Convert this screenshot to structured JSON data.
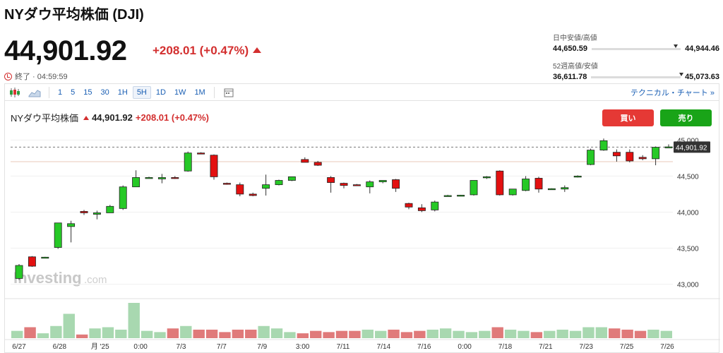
{
  "header": {
    "title": "NYダウ平均株価 (DJI)",
    "price": "44,901.92",
    "change": "+208.01 (+0.47%)",
    "status": "終了 · 04:59:59"
  },
  "ranges": {
    "day_label": "日中安値/高値",
    "day_low": "44,650.59",
    "day_high": "44,944.46",
    "day_pos": 0.92,
    "week52_label": "52週高値/安値",
    "week52_low": "36,611.78",
    "week52_high": "45,073.63",
    "week52_pos": 0.98
  },
  "toolbar": {
    "timeframes": [
      "1",
      "5",
      "15",
      "30",
      "1H",
      "5H",
      "1D",
      "1W",
      "1M"
    ],
    "active": "5H",
    "technical": "テクニカル・チャート »"
  },
  "chart_header": {
    "name": "NYダウ平均株価",
    "price": "44,901.92",
    "change": "+208.01 (+0.47%)",
    "sell_label": "買い",
    "buy_label": "売り"
  },
  "watermark": {
    "main": "Investing",
    "suffix": ".com"
  },
  "colors": {
    "up": "#26c926",
    "down": "#e31010",
    "vol_up": "#a8d8b0",
    "vol_down": "#e07a7a",
    "accent": "#d32f2f",
    "blue": "#1a5fb4"
  },
  "chart_data": {
    "type": "candlestick",
    "title": "",
    "ylim": [
      42800,
      45150
    ],
    "yticks": [
      43000,
      43500,
      44000,
      44500,
      45000
    ],
    "ytick_labels": [
      "43,000",
      "43,500",
      "44,000",
      "44,500",
      "45,000"
    ],
    "last_price": 44901.92,
    "last_label": "44,901.92",
    "ref_line": 44700,
    "xlabels": [
      "6/27",
      "6/28",
      "月 '25",
      "0:00",
      "7/3",
      "7/7",
      "7/9",
      "3:00",
      "7/11",
      "7/14",
      "7/16",
      "0:00",
      "7/18",
      "7/21",
      "7/23",
      "7/25",
      "7/26"
    ],
    "candles": [
      {
        "o": 43080,
        "h": 43280,
        "l": 43060,
        "c": 43260
      },
      {
        "o": 43380,
        "h": 43390,
        "l": 43240,
        "c": 43250
      },
      {
        "o": 43375,
        "h": 43380,
        "l": 43370,
        "c": 43375
      },
      {
        "o": 43510,
        "h": 43850,
        "l": 43490,
        "c": 43850
      },
      {
        "o": 43800,
        "h": 43880,
        "l": 43580,
        "c": 43840
      },
      {
        "o": 44010,
        "h": 44030,
        "l": 43960,
        "c": 43990
      },
      {
        "o": 43970,
        "h": 44020,
        "l": 43900,
        "c": 43990
      },
      {
        "o": 43990,
        "h": 44100,
        "l": 43990,
        "c": 44080
      },
      {
        "o": 44050,
        "h": 44370,
        "l": 44030,
        "c": 44350
      },
      {
        "o": 44350,
        "h": 44580,
        "l": 44350,
        "c": 44480
      },
      {
        "o": 44480,
        "h": 44490,
        "l": 44470,
        "c": 44480
      },
      {
        "o": 44460,
        "h": 44530,
        "l": 44400,
        "c": 44480
      },
      {
        "o": 44480,
        "h": 44500,
        "l": 44460,
        "c": 44470
      },
      {
        "o": 44570,
        "h": 44840,
        "l": 44560,
        "c": 44820
      },
      {
        "o": 44820,
        "h": 44830,
        "l": 44810,
        "c": 44815
      },
      {
        "o": 44790,
        "h": 44800,
        "l": 44450,
        "c": 44490
      },
      {
        "o": 44400,
        "h": 44410,
        "l": 44380,
        "c": 44390
      },
      {
        "o": 44380,
        "h": 44410,
        "l": 44220,
        "c": 44250
      },
      {
        "o": 44250,
        "h": 44270,
        "l": 44220,
        "c": 44230
      },
      {
        "o": 44330,
        "h": 44520,
        "l": 44230,
        "c": 44380
      },
      {
        "o": 44380,
        "h": 44450,
        "l": 44370,
        "c": 44440
      },
      {
        "o": 44440,
        "h": 44490,
        "l": 44430,
        "c": 44490
      },
      {
        "o": 44730,
        "h": 44760,
        "l": 44700,
        "c": 44690
      },
      {
        "o": 44690,
        "h": 44710,
        "l": 44640,
        "c": 44650
      },
      {
        "o": 44480,
        "h": 44500,
        "l": 44270,
        "c": 44410
      },
      {
        "o": 44400,
        "h": 44410,
        "l": 44330,
        "c": 44370
      },
      {
        "o": 44380,
        "h": 44390,
        "l": 44370,
        "c": 44375
      },
      {
        "o": 44350,
        "h": 44440,
        "l": 44260,
        "c": 44420
      },
      {
        "o": 44420,
        "h": 44440,
        "l": 44400,
        "c": 44440
      },
      {
        "o": 44450,
        "h": 44460,
        "l": 44280,
        "c": 44330
      },
      {
        "o": 44120,
        "h": 44130,
        "l": 44040,
        "c": 44070
      },
      {
        "o": 44060,
        "h": 44110,
        "l": 44000,
        "c": 44020
      },
      {
        "o": 44030,
        "h": 44160,
        "l": 44010,
        "c": 44140
      },
      {
        "o": 44230,
        "h": 44240,
        "l": 44220,
        "c": 44230
      },
      {
        "o": 44235,
        "h": 44240,
        "l": 44230,
        "c": 44235
      },
      {
        "o": 44240,
        "h": 44440,
        "l": 44230,
        "c": 44440
      },
      {
        "o": 44480,
        "h": 44500,
        "l": 44460,
        "c": 44490
      },
      {
        "o": 44570,
        "h": 44580,
        "l": 44230,
        "c": 44240
      },
      {
        "o": 44240,
        "h": 44320,
        "l": 44230,
        "c": 44320
      },
      {
        "o": 44300,
        "h": 44500,
        "l": 44290,
        "c": 44460
      },
      {
        "o": 44470,
        "h": 44490,
        "l": 44270,
        "c": 44320
      },
      {
        "o": 44320,
        "h": 44330,
        "l": 44310,
        "c": 44325
      },
      {
        "o": 44320,
        "h": 44370,
        "l": 44280,
        "c": 44340
      },
      {
        "o": 44490,
        "h": 44510,
        "l": 44480,
        "c": 44500
      },
      {
        "o": 44660,
        "h": 44880,
        "l": 44650,
        "c": 44860
      },
      {
        "o": 44860,
        "h": 45020,
        "l": 44850,
        "c": 44990
      },
      {
        "o": 44830,
        "h": 44870,
        "l": 44700,
        "c": 44780
      },
      {
        "o": 44830,
        "h": 44870,
        "l": 44690,
        "c": 44710
      },
      {
        "o": 44760,
        "h": 44790,
        "l": 44720,
        "c": 44740
      },
      {
        "o": 44740,
        "h": 44910,
        "l": 44650,
        "c": 44900
      },
      {
        "o": 44900,
        "h": 44940,
        "l": 44890,
        "c": 44905
      }
    ],
    "volumes": [
      0.3,
      0.45,
      0.2,
      0.5,
      1.0,
      0.15,
      0.4,
      0.45,
      0.35,
      1.45,
      0.3,
      0.25,
      0.4,
      0.5,
      0.35,
      0.35,
      0.25,
      0.35,
      0.35,
      0.5,
      0.4,
      0.25,
      0.2,
      0.3,
      0.25,
      0.3,
      0.3,
      0.35,
      0.3,
      0.35,
      0.25,
      0.3,
      0.35,
      0.4,
      0.3,
      0.25,
      0.3,
      0.45,
      0.35,
      0.3,
      0.25,
      0.3,
      0.35,
      0.3,
      0.45,
      0.45,
      0.4,
      0.35,
      0.3,
      0.35,
      0.3
    ]
  }
}
